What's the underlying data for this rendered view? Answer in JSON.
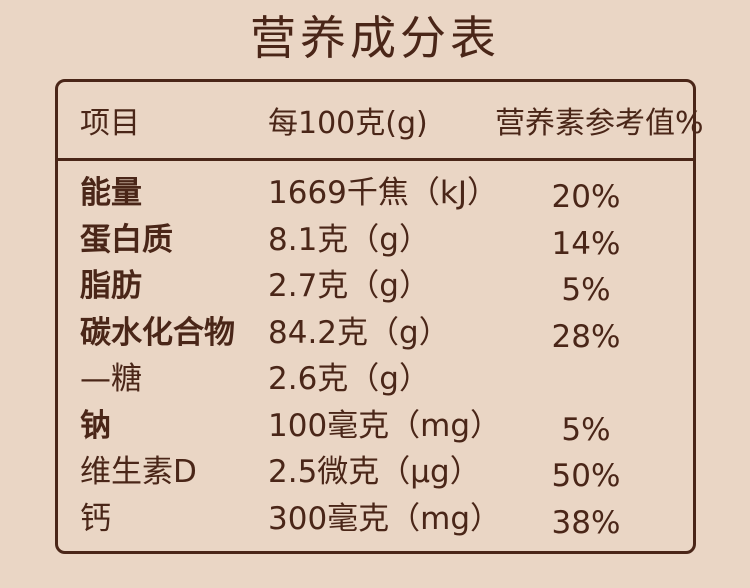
{
  "title": "营养成分表",
  "table": {
    "headers": [
      "项目",
      "每100克(g)",
      "营养素参考值%"
    ],
    "rows": [
      [
        "能量",
        "1669千焦（kJ）",
        "20%"
      ],
      [
        "蛋白质",
        "8.1克（g）",
        "14%"
      ],
      [
        "脂肪",
        "2.7克（g）",
        "5%"
      ],
      [
        "碳水化合物",
        "84.2克（g）",
        "28%"
      ],
      [
        "—糖",
        "2.6克（g）"
      ],
      [
        "钠",
        "100毫克（mg）",
        "5%"
      ],
      [
        "维生素D",
        "2.5微克（μg）",
        "50%"
      ],
      [
        "钙",
        "300毫克（mg）",
        "38%"
      ]
    ]
  }
}
